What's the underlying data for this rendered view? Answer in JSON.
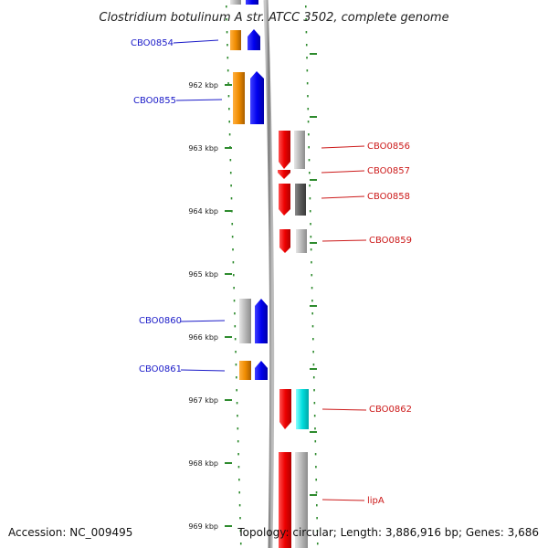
{
  "title": "Clostridium botulinum A str. ATCC 3502, complete genome",
  "accession": "Accession: NC_009495",
  "summary": "Topology: circular; Length: 3,886,916 bp; Genes: 3,686",
  "colors": {
    "tick": "#2e8b2e",
    "backbone": "#8a8a8a",
    "plus_label": "#1a1ac8",
    "minus_label": "#cc1a1a",
    "cds_forward": "#0000ee",
    "cds_reverse": "#ee0000",
    "cog_orange": "#f08c00",
    "cog_grey": "#b0b0b0",
    "cog_dark": "#5a5a5a",
    "cog_cyan": "#00dede"
  },
  "ticks": [
    {
      "label": "962 kbp"
    },
    {
      "label": "963 kbp"
    },
    {
      "label": "964 kbp"
    },
    {
      "label": "965 kbp"
    },
    {
      "label": "966 kbp"
    },
    {
      "label": "967 kbp"
    },
    {
      "label": "968 kbp"
    },
    {
      "label": "969 kbp"
    }
  ],
  "plus_genes": [
    {
      "name": "CBO0854",
      "cog": "orange"
    },
    {
      "name": "CBO0855",
      "cog": "orange"
    },
    {
      "name": "CBO0860",
      "cog": "grey"
    },
    {
      "name": "CBO0861",
      "cog": "orange"
    }
  ],
  "minus_genes": [
    {
      "name": "CBO0856",
      "cog": "grey"
    },
    {
      "name": "CBO0857",
      "cog": "none"
    },
    {
      "name": "CBO0858",
      "cog": "dark"
    },
    {
      "name": "CBO0859",
      "cog": "grey"
    },
    {
      "name": "CBO0862",
      "cog": "cyan"
    },
    {
      "name": "lipA",
      "cog": "grey"
    }
  ]
}
